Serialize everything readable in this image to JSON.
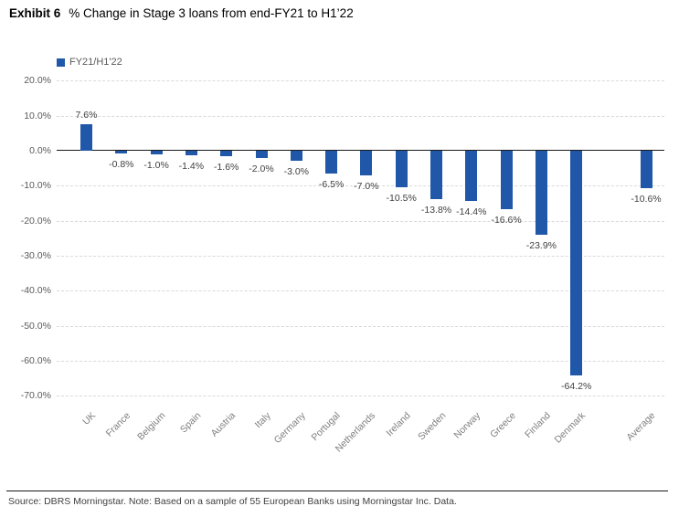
{
  "title": {
    "exhibit": "Exhibit 6",
    "text": "% Change in Stage 3 loans from end-FY21 to H1’22"
  },
  "legend": {
    "label": "FY21/H1'22"
  },
  "footer": {
    "source": "Source: DBRS Morningstar. Note: Based on a sample of 55 European Banks using Morningstar Inc. Data."
  },
  "colors": {
    "bar": "#2057a8",
    "zero_line": "#1a1a1a",
    "gridline": "#d9d9d9",
    "axis_tick_text": "#595959",
    "category_text": "#7f7f7f",
    "data_label_text": "#404040"
  },
  "chart_data": {
    "type": "bar",
    "title": "% Change in Stage 3 loans from end-FY21 to H1’22",
    "series_name": "FY21/H1'22",
    "categories": [
      "UK",
      "France",
      "Belgium",
      "Spain",
      "Austria",
      "Italy",
      "Germany",
      "Portugal",
      "Netherlands",
      "Ireland",
      "Sweden",
      "Norway",
      "Greece",
      "Finland",
      "Denmark",
      "Average"
    ],
    "values": [
      7.6,
      -0.8,
      -1.0,
      -1.4,
      -1.6,
      -2.0,
      -3.0,
      -6.5,
      -7.0,
      -10.5,
      -13.8,
      -14.4,
      -16.6,
      -23.9,
      -64.2,
      -10.6
    ],
    "data_labels": [
      "7.6%",
      "-0.8%",
      "-1.0%",
      "-1.4%",
      "-1.6%",
      "-2.0%",
      "-3.0%",
      "-6.5%",
      "-7.0%",
      "-10.5%",
      "-13.8%",
      "-14.4%",
      "-16.6%",
      "-23.9%",
      "-64.2%",
      "-10.6%"
    ],
    "xlabel": "",
    "ylabel": "",
    "ylim": [
      -70,
      20
    ],
    "ytick_step": 10,
    "ytick_labels": [
      "20.0%",
      "10.0%",
      "0.0%",
      "-10.0%",
      "-20.0%",
      "-30.0%",
      "-40.0%",
      "-50.0%",
      "-60.0%",
      "-70.0%"
    ],
    "grid": true,
    "legend_position": "top-left",
    "gap_before_last_category": true
  }
}
